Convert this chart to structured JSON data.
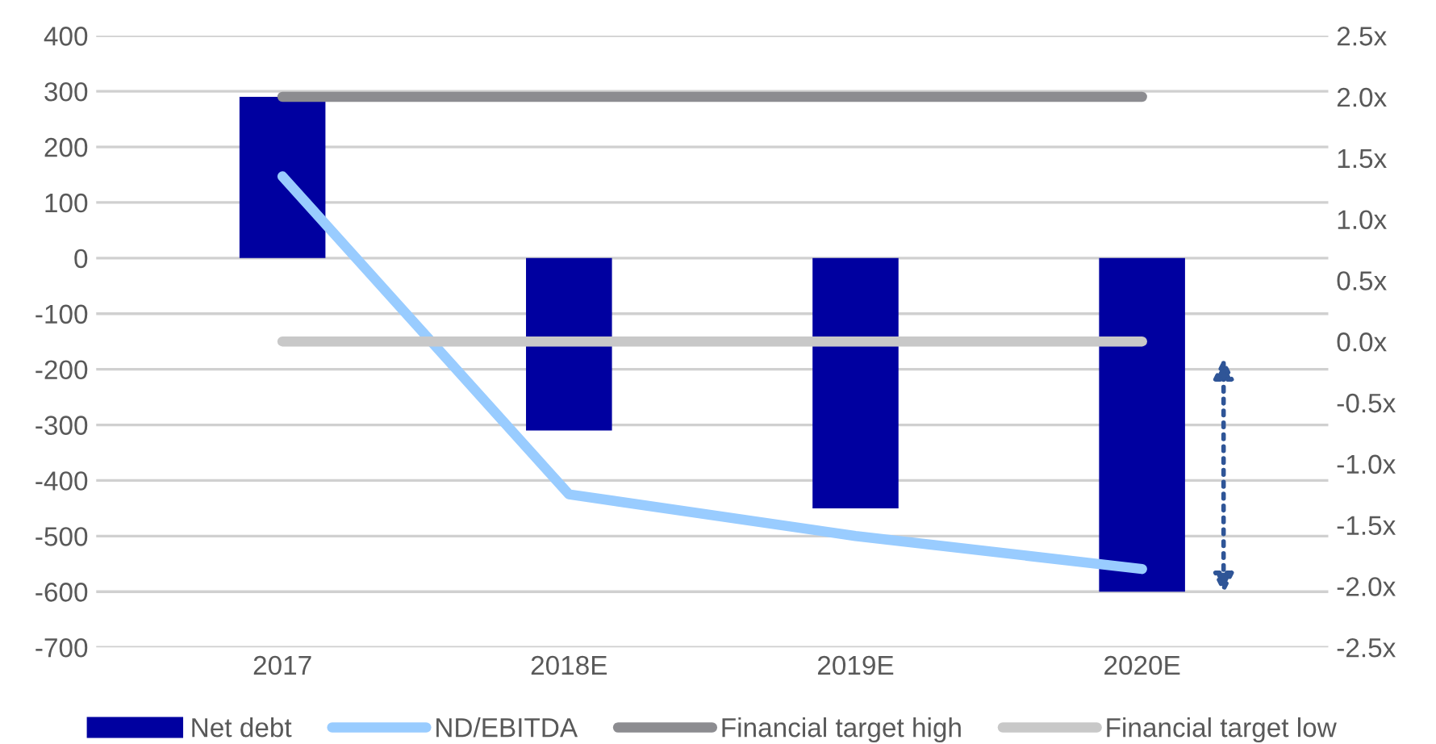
{
  "chart_data": {
    "type": "bar",
    "categories": [
      "2017",
      "2018E",
      "2019E",
      "2020E"
    ],
    "series": [
      {
        "name": "Net debt",
        "color": "#0000a0",
        "values": [
          290,
          -310,
          -450,
          -600
        ]
      },
      {
        "name": "ND/EBITDA",
        "type": "line",
        "axis": "y2",
        "color": "#99ccff",
        "values": [
          1.35,
          -1.25,
          -1.59,
          -1.86
        ]
      },
      {
        "name": "Financial target high",
        "type": "line",
        "axis": "y2",
        "color": "#8c8c90",
        "values": [
          2.0,
          2.0,
          2.0,
          2.0
        ]
      },
      {
        "name": "Financial target low",
        "type": "line",
        "axis": "y2",
        "color": "#c8c8c8",
        "values": [
          0.0,
          0.0,
          0.0,
          0.0
        ]
      }
    ],
    "ylim": [
      -700,
      400
    ],
    "yticks": [
      -700,
      -600,
      -500,
      -400,
      -300,
      -200,
      -100,
      0,
      100,
      200,
      300,
      400
    ],
    "y2lim": [
      -2.5,
      2.5
    ],
    "y2ticks": [
      {
        "value": -2.5,
        "label": "-2.5x"
      },
      {
        "value": -2.0,
        "label": "-2.0x"
      },
      {
        "value": -1.5,
        "label": "-1.5x"
      },
      {
        "value": -1.0,
        "label": "-1.0x"
      },
      {
        "value": -0.5,
        "label": "-0.5x"
      },
      {
        "value": 0.0,
        "label": "0.0x"
      },
      {
        "value": 0.5,
        "label": "0.5x"
      },
      {
        "value": 1.0,
        "label": "1.0x"
      },
      {
        "value": 1.5,
        "label": "1.5x"
      },
      {
        "value": 2.0,
        "label": "2.0x"
      },
      {
        "value": 2.5,
        "label": "2.5x"
      }
    ],
    "grid": "y",
    "legend": "bottom"
  }
}
